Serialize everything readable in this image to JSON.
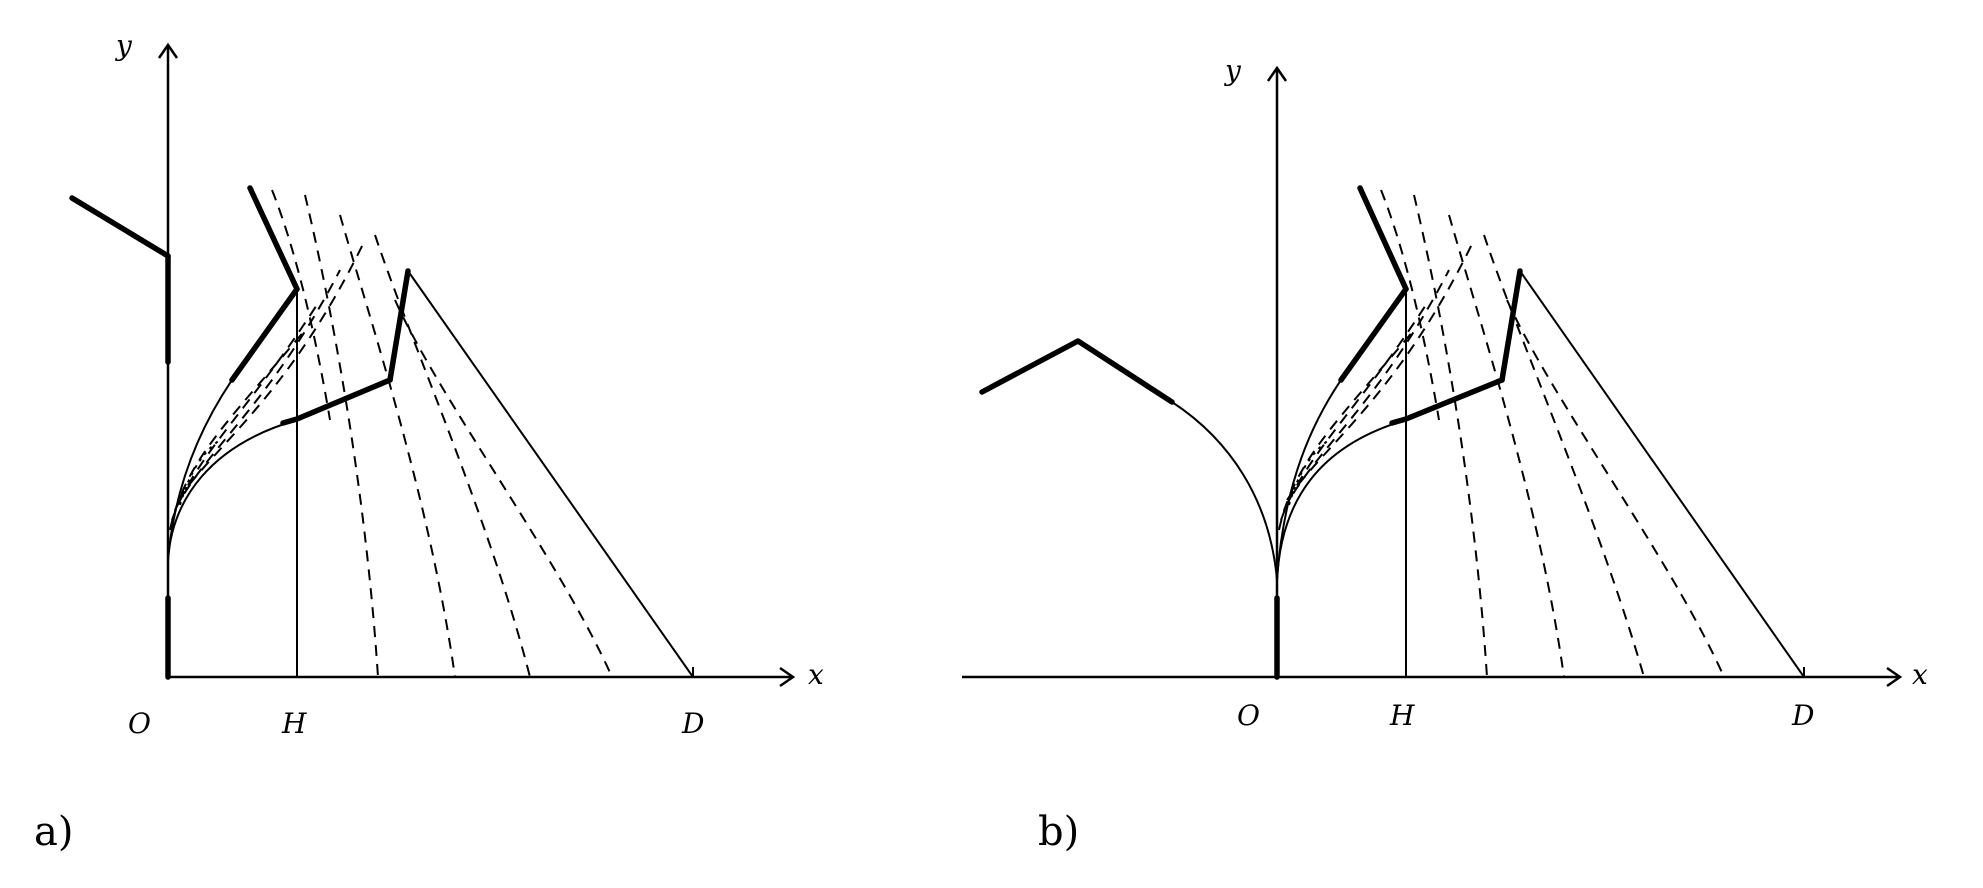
{
  "panels": [
    {
      "caption": "a)",
      "axes": {
        "x_label": "x",
        "y_label": "y"
      },
      "points": {
        "origin": "O",
        "h": "H",
        "d": "D"
      }
    },
    {
      "caption": "b)",
      "axes": {
        "x_label": "x",
        "y_label": "y"
      },
      "points": {
        "origin": "O",
        "h": "H",
        "d": "D"
      }
    }
  ]
}
